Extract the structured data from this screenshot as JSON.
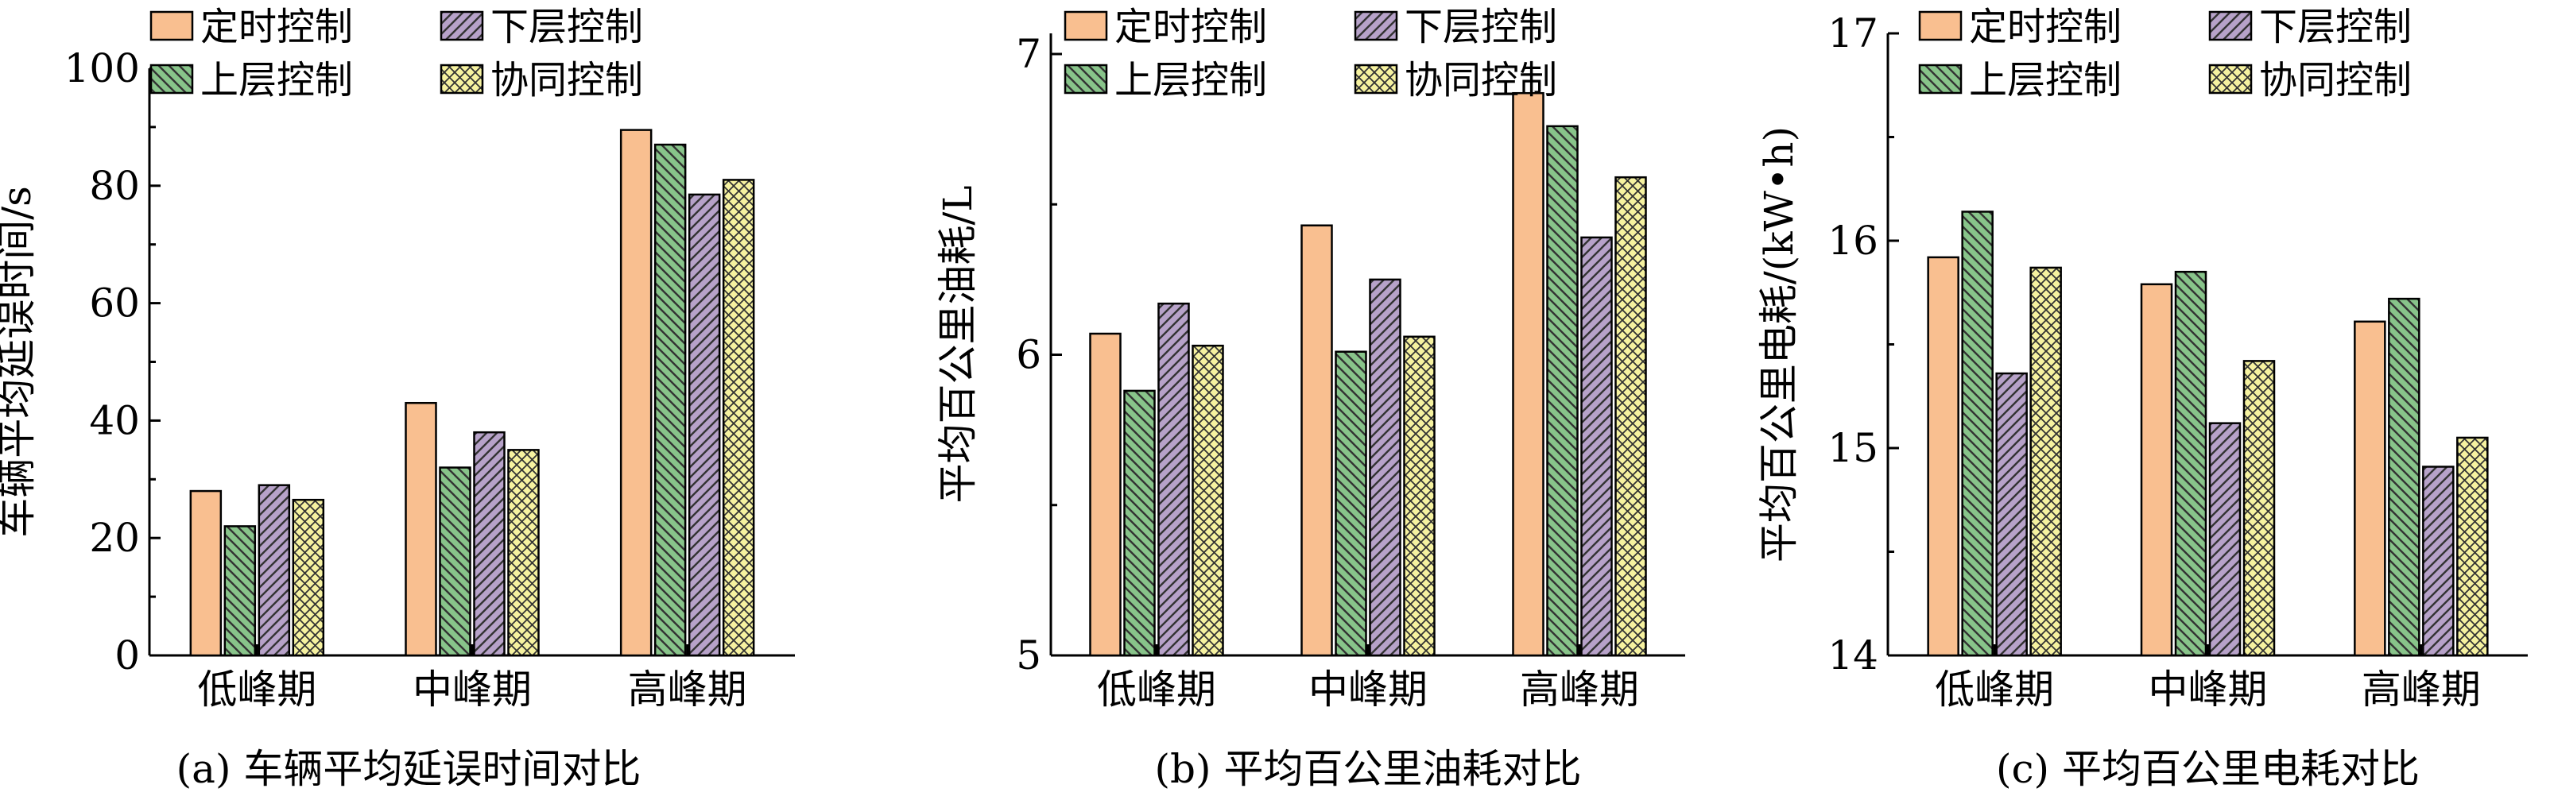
{
  "legend": [
    {
      "label": "定时控制",
      "color": "#F9BF90",
      "pattern": "none"
    },
    {
      "label": "下层控制",
      "color": "#B7A2C9",
      "pattern": "diag-left"
    },
    {
      "label": "上层控制",
      "color": "#88C48A",
      "pattern": "diag-right"
    },
    {
      "label": "协同控制",
      "color": "#F6F2A0",
      "pattern": "cross"
    }
  ],
  "chart_data": [
    {
      "type": "bar",
      "caption": "(a) 车辆平均延误时间对比",
      "ylabel": "车辆平均延误时间/s",
      "categories": [
        "低峰期",
        "中峰期",
        "高峰期"
      ],
      "ylim": [
        0,
        100
      ],
      "yticks": [
        0,
        20,
        40,
        60,
        80,
        100
      ],
      "series": [
        {
          "name": "定时控制",
          "values": [
            28,
            43,
            89.5
          ]
        },
        {
          "name": "上层控制",
          "values": [
            22,
            32,
            87
          ]
        },
        {
          "name": "下层控制",
          "values": [
            29,
            38,
            78.5
          ]
        },
        {
          "name": "协同控制",
          "values": [
            26.5,
            35,
            81
          ]
        }
      ]
    },
    {
      "type": "bar",
      "caption": "(b) 平均百公里油耗对比",
      "ylabel": "平均百公里油耗/L",
      "categories": [
        "低峰期",
        "中峰期",
        "高峰期"
      ],
      "ylim": [
        5,
        7
      ],
      "yticks": [
        5,
        6,
        7
      ],
      "series": [
        {
          "name": "定时控制",
          "values": [
            6.07,
            6.43,
            6.87
          ]
        },
        {
          "name": "上层控制",
          "values": [
            5.88,
            6.01,
            6.76
          ]
        },
        {
          "name": "下层控制",
          "values": [
            6.17,
            6.25,
            6.39
          ]
        },
        {
          "name": "协同控制",
          "values": [
            6.03,
            6.06,
            6.59
          ]
        }
      ]
    },
    {
      "type": "bar",
      "caption": "(c) 平均百公里电耗对比",
      "ylabel": "平均百公里电耗/(kW•h)",
      "categories": [
        "低峰期",
        "中峰期",
        "高峰期"
      ],
      "ylim": [
        14,
        17
      ],
      "yticks": [
        14,
        15,
        16,
        17
      ],
      "series": [
        {
          "name": "定时控制",
          "values": [
            15.92,
            15.79,
            15.61
          ]
        },
        {
          "name": "上层控制",
          "values": [
            16.14,
            15.85,
            15.72
          ]
        },
        {
          "name": "下层控制",
          "values": [
            15.36,
            15.12,
            14.91
          ]
        },
        {
          "name": "协同控制",
          "values": [
            15.87,
            15.42,
            15.05
          ]
        }
      ]
    }
  ]
}
